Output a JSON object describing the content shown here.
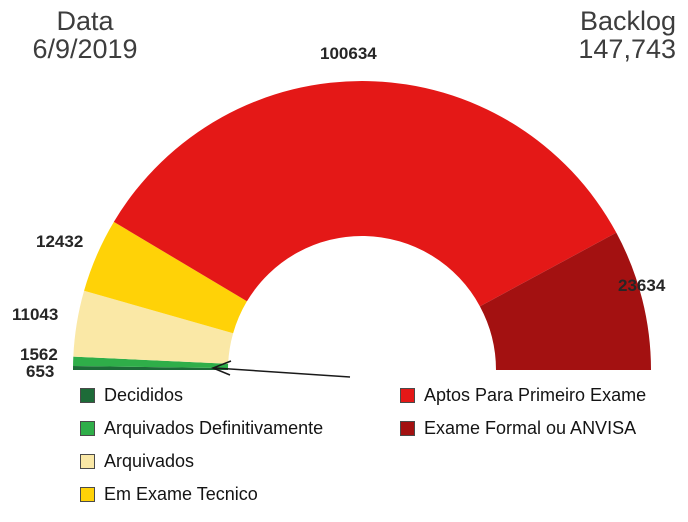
{
  "header": {
    "date_label": "Data",
    "date_value": "6/9/2019",
    "backlog_label": "Backlog",
    "backlog_value": "147,743"
  },
  "chart_data": {
    "type": "pie",
    "variant": "semicircle-donut",
    "legend_position": "bottom",
    "segments": [
      {
        "label": "Decididos",
        "value": 653,
        "color": "#1d6b38"
      },
      {
        "label": "Arquivados Definitivamente",
        "value": 1562,
        "color": "#2fae49"
      },
      {
        "label": "Arquivados",
        "value": 11043,
        "color": "#fae8a6"
      },
      {
        "label": "Em Exame Tecnico",
        "value": 12432,
        "color": "#ffd207"
      },
      {
        "label": "Aptos Para Primeiro Exame",
        "value": 100634,
        "color": "#e41817"
      },
      {
        "label": "Exame Formal ou ANVISA",
        "value": 23634,
        "color": "#a31111"
      }
    ]
  }
}
